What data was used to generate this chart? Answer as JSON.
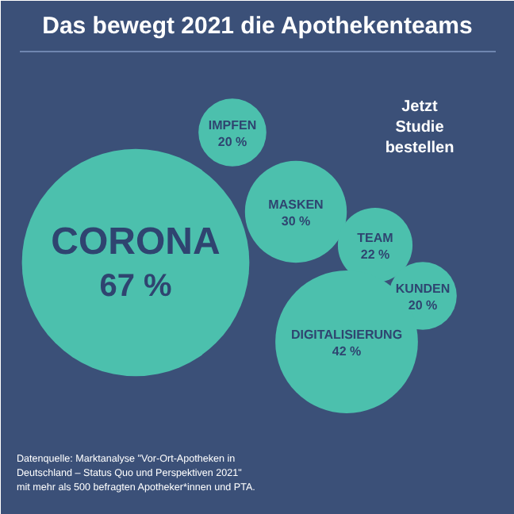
{
  "chart_data": {
    "type": "other",
    "title": "Das bewegt 2021 die Apothekenteams",
    "categories": [
      "CORONA",
      "IMPFEN",
      "MASKEN",
      "TEAM",
      "KUNDEN",
      "DIGITALISIERUNG"
    ],
    "values": [
      67,
      20,
      30,
      22,
      20,
      42
    ],
    "value_labels": [
      "67 %",
      "20 %",
      "30 %",
      "22 %",
      "20 %",
      "42 %"
    ],
    "color": "#4cc0ad",
    "annotations": [
      "Jetzt\nStudie\nbestellen",
      "Datenquelle: Marktanalyse \"Vor-Ort-Apotheken in\nDeutschland – Status Quo und Perspektiven 2021\"\nmit mehr als 500 befragten Apotheker*innen und PTA."
    ]
  }
}
